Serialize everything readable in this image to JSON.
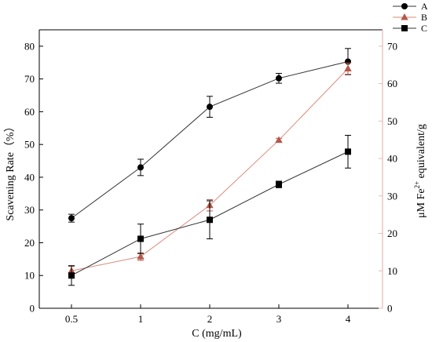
{
  "chart_data": {
    "type": "line",
    "categories": [
      "0.5",
      "1",
      "2",
      "3",
      "4"
    ],
    "xlabel": "C (mg/mL)",
    "ylabel_left": "Scavening Rate（%）",
    "ylabel_right_base": "μM Fe",
    "ylabel_right_sup": "2+",
    "ylabel_right_tail": " equivalent/g",
    "ylim_left": [
      0,
      85
    ],
    "yticks_left": [
      0,
      10,
      20,
      30,
      40,
      50,
      60,
      70,
      80
    ],
    "ylim_right": [
      0,
      74.375
    ],
    "yticks_right": [
      0,
      10,
      20,
      30,
      40,
      50,
      60,
      70
    ],
    "right_axis_color": "#e8b8b8",
    "grid": false,
    "legend_placement": "top-right outside",
    "series": [
      {
        "name": "A",
        "axis": "left",
        "marker": "circle",
        "color": "#000000",
        "line_color": "#333333",
        "values": [
          27.5,
          43,
          61.5,
          70.2,
          75.3
        ],
        "errors": [
          1.2,
          2.5,
          3.2,
          1.5,
          4.0
        ]
      },
      {
        "name": "B",
        "axis": "right",
        "marker": "triangle",
        "color": "#b5584a",
        "line_color": "#d98b7c",
        "values": [
          10,
          13.8,
          27.5,
          44.9,
          64.0
        ],
        "errors": [
          1.2,
          1.0,
          1.5,
          0.5,
          1.5
        ]
      },
      {
        "name": "C",
        "axis": "left",
        "marker": "square",
        "color": "#000000",
        "line_color": "#333333",
        "values": [
          10,
          21.2,
          27,
          37.8,
          47.8
        ],
        "errors": [
          3.0,
          4.5,
          5.8,
          1.0,
          5.0
        ]
      }
    ]
  }
}
